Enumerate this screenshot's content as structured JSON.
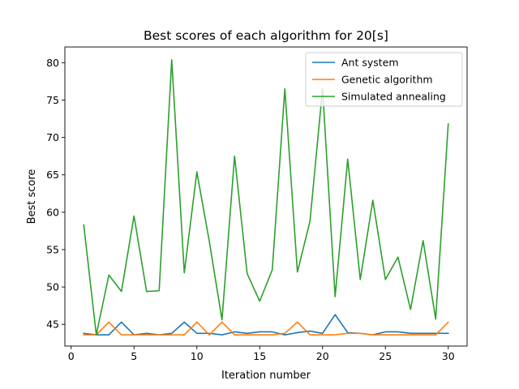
{
  "chart_data": {
    "type": "line",
    "title": "Best scores of each algorithm for 20[s]",
    "xlabel": "Iteration number",
    "ylabel": "Best score",
    "xlim": [
      -0.5,
      31.5
    ],
    "ylim": [
      42.1,
      82.1
    ],
    "xticks": [
      0,
      5,
      10,
      15,
      20,
      25,
      30
    ],
    "yticks": [
      45,
      50,
      55,
      60,
      65,
      70,
      75,
      80
    ],
    "legend_position": "top-right",
    "grid": false,
    "x": [
      1,
      2,
      3,
      4,
      5,
      6,
      7,
      8,
      9,
      10,
      11,
      12,
      13,
      14,
      15,
      16,
      17,
      18,
      19,
      20,
      21,
      22,
      23,
      24,
      25,
      26,
      27,
      28,
      29,
      30
    ],
    "series": [
      {
        "name": "Ant system",
        "color": "#1f77b4",
        "values": [
          43.8,
          43.6,
          43.6,
          45.3,
          43.6,
          43.8,
          43.6,
          43.8,
          45.3,
          43.8,
          43.8,
          43.6,
          44.0,
          43.8,
          44.0,
          44.0,
          43.6,
          43.9,
          44.1,
          43.8,
          46.3,
          43.9,
          43.8,
          43.6,
          44.0,
          44.0,
          43.8,
          43.8,
          43.8,
          43.8
        ]
      },
      {
        "name": "Genetic algorithm",
        "color": "#ff7f0e",
        "values": [
          43.6,
          43.6,
          45.3,
          43.6,
          43.6,
          43.6,
          43.6,
          43.6,
          43.6,
          45.3,
          43.6,
          45.3,
          43.6,
          43.6,
          43.6,
          43.6,
          43.8,
          45.3,
          43.6,
          43.6,
          43.6,
          43.8,
          43.8,
          43.6,
          43.6,
          43.6,
          43.6,
          43.6,
          43.6,
          45.3
        ]
      },
      {
        "name": "Simulated annealing",
        "color": "#2ca02c",
        "values": [
          58.3,
          43.6,
          51.6,
          49.4,
          59.5,
          49.4,
          49.5,
          80.4,
          51.9,
          65.4,
          56.0,
          45.6,
          67.5,
          51.8,
          48.1,
          52.3,
          76.5,
          52.0,
          58.8,
          76.5,
          48.7,
          67.1,
          51.0,
          61.6,
          51.0,
          54.0,
          47.0,
          56.2,
          45.7,
          71.8
        ]
      }
    ]
  }
}
